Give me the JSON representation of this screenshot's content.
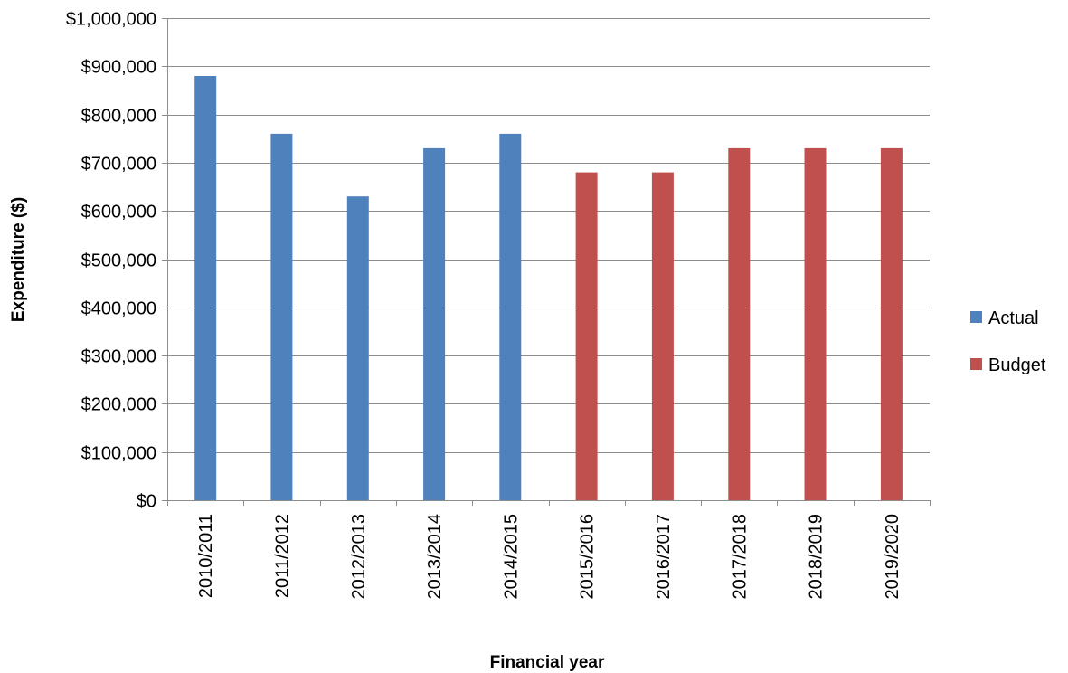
{
  "chart_data": {
    "type": "bar",
    "title": "",
    "xlabel": "Financial year",
    "ylabel": "Expenditure ($)",
    "categories": [
      "2010/2011",
      "2011/2012",
      "2012/2013",
      "2013/2014",
      "2014/2015",
      "2015/2016",
      "2016/2017",
      "2017/2018",
      "2018/2019",
      "2019/2020"
    ],
    "series": [
      {
        "name": "Actual",
        "color": "#4F81BD",
        "values": [
          880000,
          760000,
          630000,
          730000,
          760000,
          null,
          null,
          null,
          null,
          null
        ]
      },
      {
        "name": "Budget",
        "color": "#C0504D",
        "values": [
          null,
          null,
          null,
          null,
          null,
          680000,
          680000,
          730000,
          730000,
          730000
        ]
      }
    ],
    "ylim": [
      0,
      1000000
    ],
    "yticks": [
      {
        "value": 0,
        "label": "$0"
      },
      {
        "value": 100000,
        "label": "$100,000"
      },
      {
        "value": 200000,
        "label": "$200,000"
      },
      {
        "value": 300000,
        "label": "$300,000"
      },
      {
        "value": 400000,
        "label": "$400,000"
      },
      {
        "value": 500000,
        "label": "$500,000"
      },
      {
        "value": 600000,
        "label": "$600,000"
      },
      {
        "value": 700000,
        "label": "$700,000"
      },
      {
        "value": 800000,
        "label": "$800,000"
      },
      {
        "value": 900000,
        "label": "$900,000"
      },
      {
        "value": 1000000,
        "label": "$1,000,000"
      }
    ],
    "grid": true,
    "legend_position": "right"
  }
}
